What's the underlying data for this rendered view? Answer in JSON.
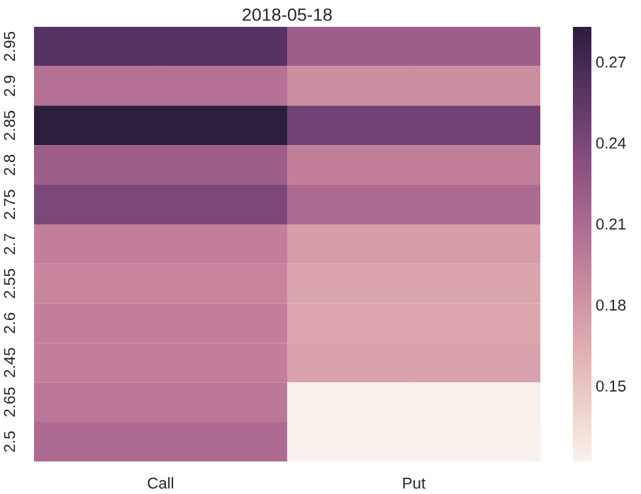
{
  "chart_data": {
    "type": "heatmap",
    "title": "2018-05-18",
    "categories": [
      "Call",
      "Put"
    ],
    "y_categories": [
      "2.95",
      "2.9",
      "2.85",
      "2.8",
      "2.75",
      "2.7",
      "2.55",
      "2.6",
      "2.45",
      "2.65",
      "2.5"
    ],
    "cells": [
      [
        0.26,
        0.22
      ],
      [
        0.205,
        0.185
      ],
      [
        0.283,
        0.245
      ],
      [
        0.22,
        0.195
      ],
      [
        0.24,
        0.21
      ],
      [
        0.195,
        0.175
      ],
      [
        0.19,
        0.17
      ],
      [
        0.195,
        0.168
      ],
      [
        0.195,
        0.172
      ],
      [
        0.2,
        0.123
      ],
      [
        0.21,
        0.122
      ]
    ],
    "clim": [
      0.122,
      0.283
    ],
    "cticks": [
      0.15,
      0.18,
      0.21,
      0.24,
      0.27
    ]
  }
}
